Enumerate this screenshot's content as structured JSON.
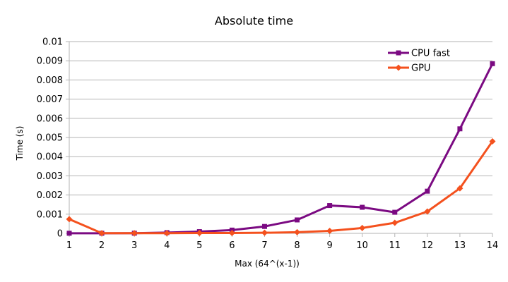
{
  "chart_data": {
    "type": "line",
    "title": "Absolute time",
    "xlabel": "Max (64^(x-1))",
    "ylabel": "Time (s)",
    "x": [
      1,
      2,
      3,
      4,
      5,
      6,
      7,
      8,
      9,
      10,
      11,
      12,
      13,
      14
    ],
    "ylim": [
      0,
      0.01
    ],
    "yticks": [
      "0",
      "0.001",
      "0.002",
      "0.003",
      "0.004",
      "0.005",
      "0.006",
      "0.007",
      "0.008",
      "0.009",
      "0.01"
    ],
    "grid": true,
    "legend_position": "top-right",
    "series": [
      {
        "name": "CPU fast",
        "color": "#7b0a82",
        "marker": "square",
        "values": [
          5e-06,
          5e-06,
          8e-06,
          4e-05,
          9e-05,
          0.00017,
          0.00036,
          0.0007,
          0.00145,
          0.00136,
          0.0011,
          0.0022,
          0.00545,
          0.00885
        ]
      },
      {
        "name": "GPU",
        "color": "#f4511e",
        "marker": "diamond",
        "values": [
          0.00074,
          1e-05,
          1e-05,
          1e-05,
          2e-05,
          2e-05,
          3e-05,
          6e-05,
          0.00013,
          0.00028,
          0.00055,
          0.00114,
          0.00235,
          0.0048
        ]
      }
    ]
  }
}
